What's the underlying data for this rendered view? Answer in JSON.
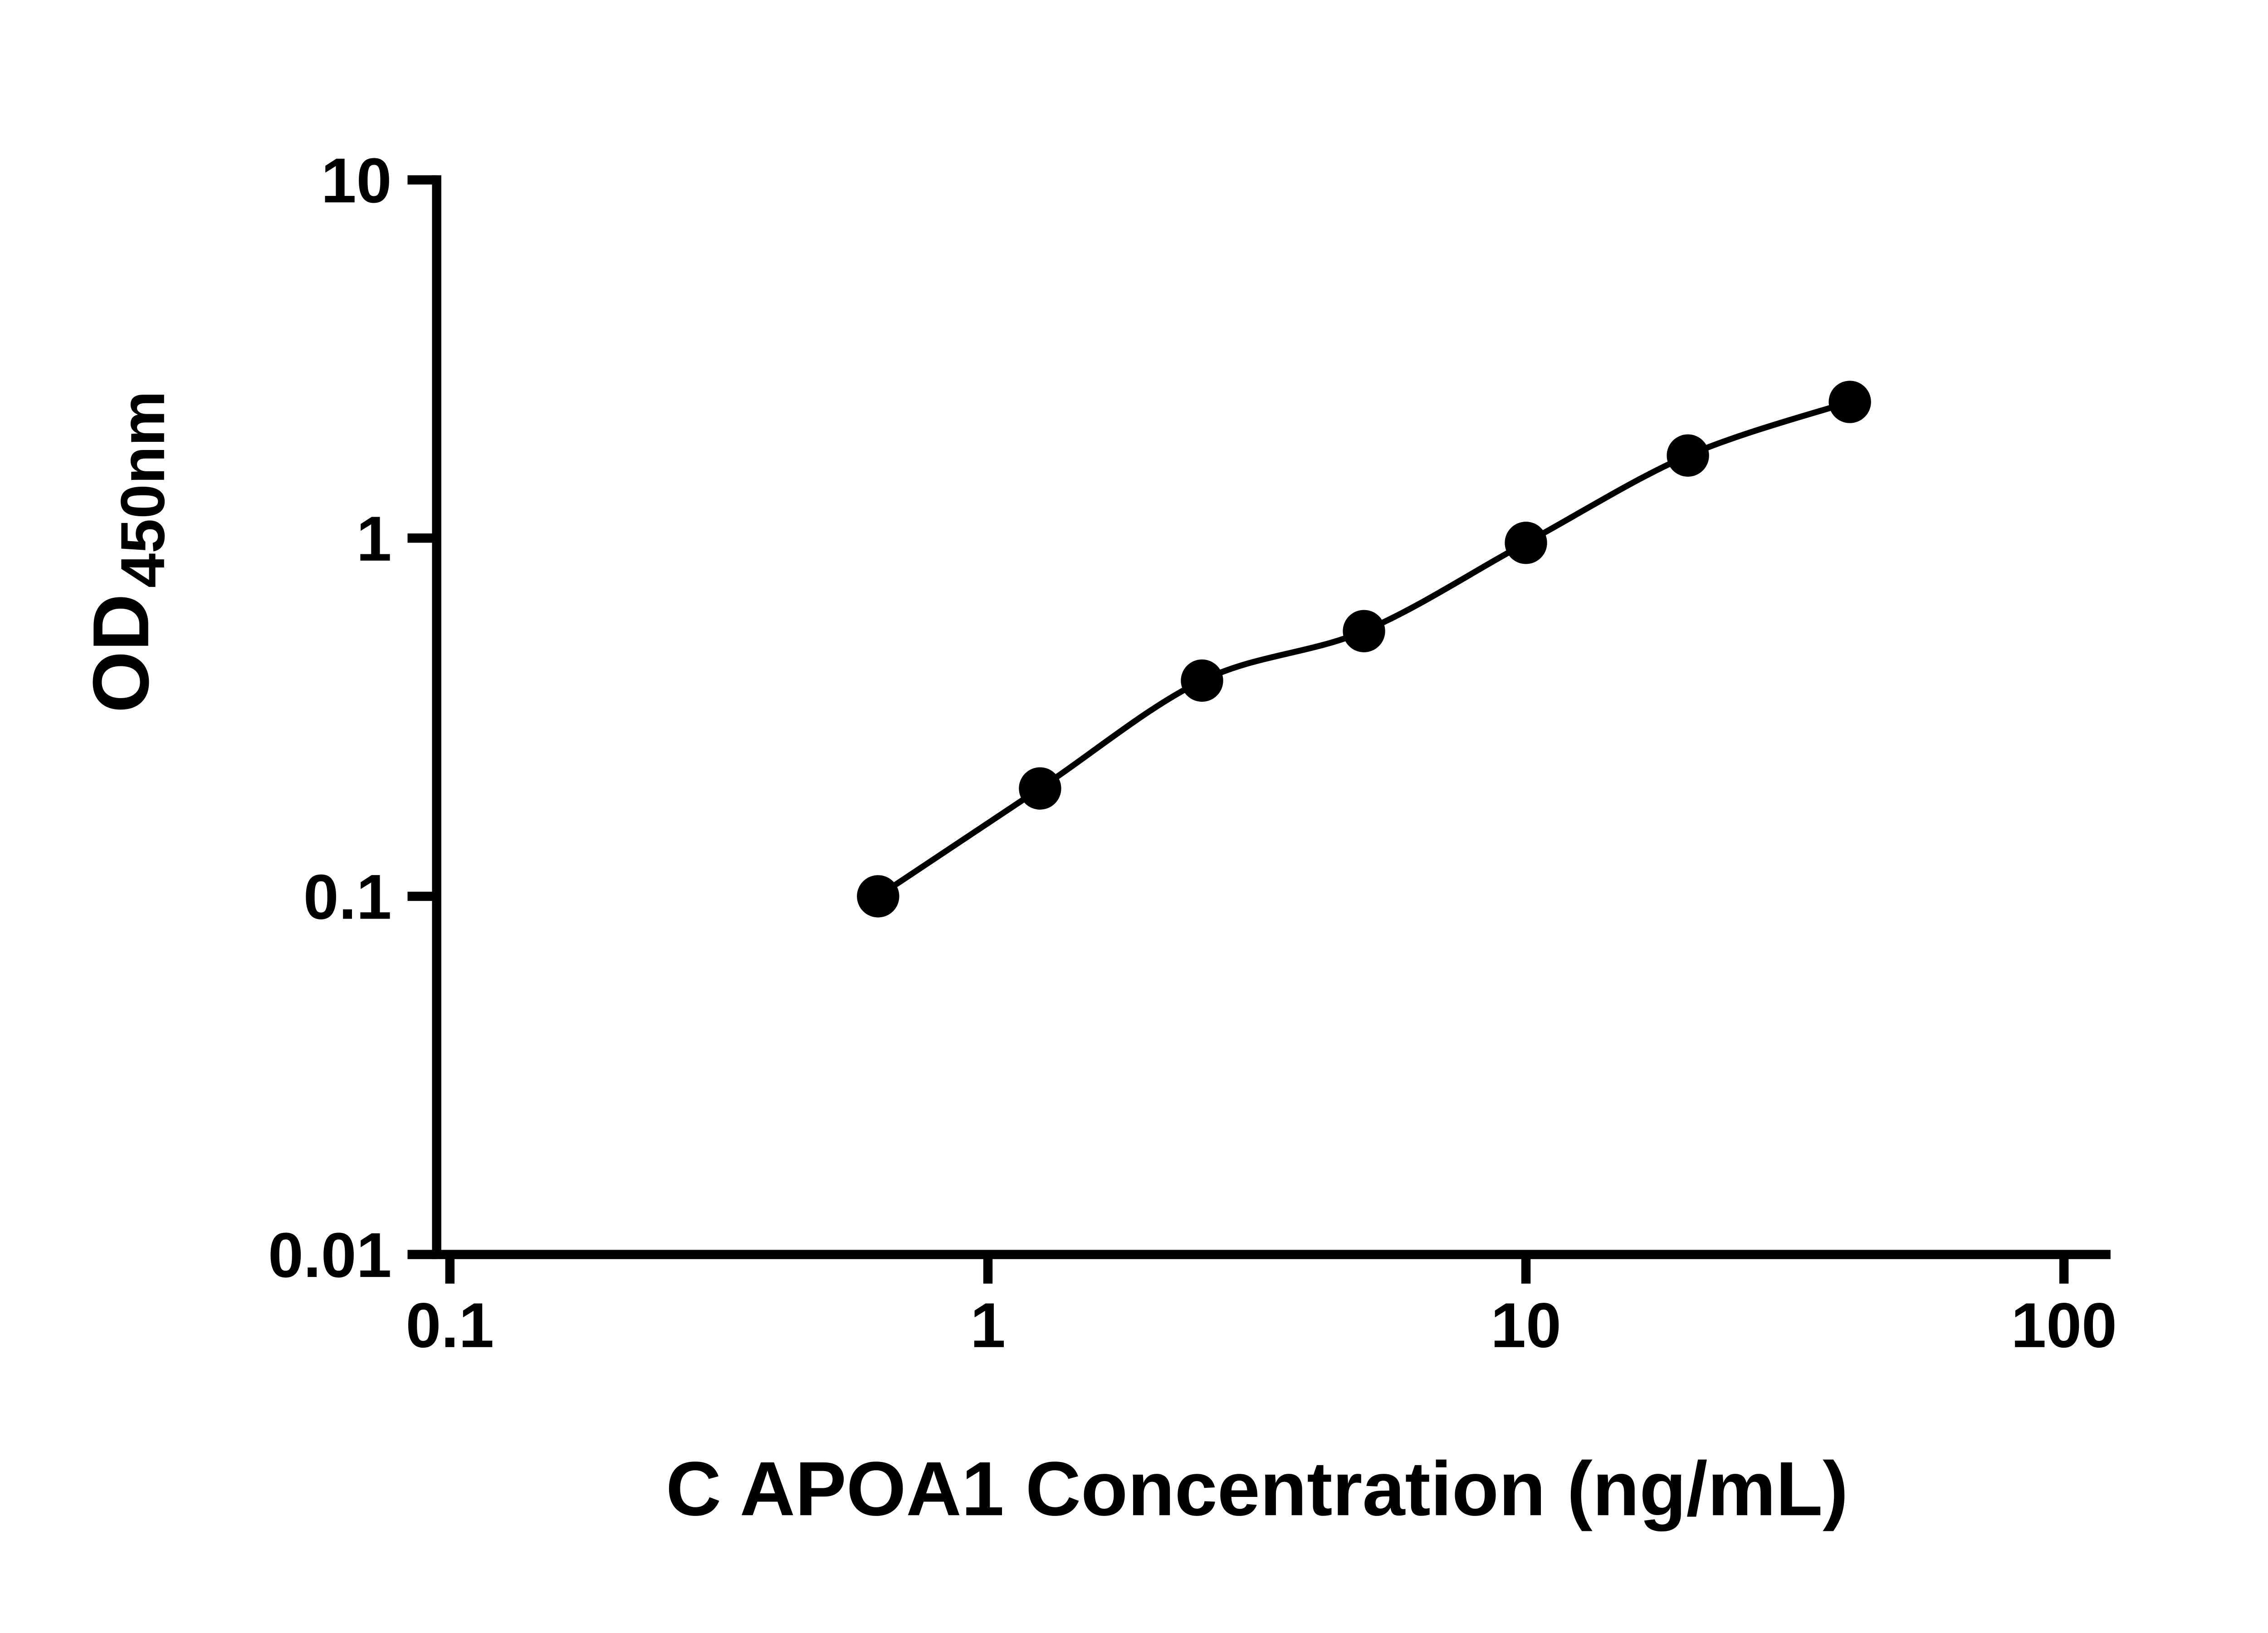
{
  "chart_data": {
    "type": "scatter",
    "title": "",
    "xlabel": "C APOA1 Concentration (ng/mL)",
    "ylabel": "OD450nm",
    "ylabel_base": "OD",
    "ylabel_subscript": "450nm",
    "x_scale": "log",
    "y_scale": "log",
    "xlim": [
      0.1,
      100
    ],
    "ylim": [
      0.01,
      10
    ],
    "x_ticks": [
      0.1,
      1,
      10,
      100
    ],
    "y_ticks": [
      0.01,
      0.1,
      1,
      10
    ],
    "x": [
      0.625,
      1.25,
      2.5,
      5,
      10,
      20,
      40
    ],
    "y": [
      0.1,
      0.2,
      0.4,
      0.55,
      0.97,
      1.7,
      2.4
    ],
    "curve": "4PL fit through standards",
    "marker_color": "#000000",
    "line_color": "#000000",
    "axis_color": "#000000",
    "background_color": "#ffffff",
    "grid": false,
    "legend": null
  }
}
